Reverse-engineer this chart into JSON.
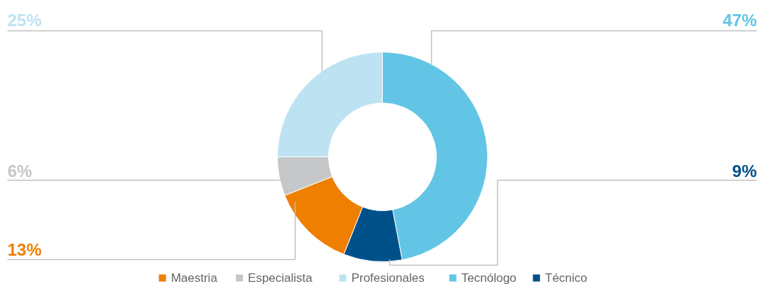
{
  "chart_data": {
    "type": "donut",
    "categories": [
      "Maestria",
      "Especialista",
      "Profesionales",
      "Tecnólogo",
      "Técnico"
    ],
    "values": [
      13,
      6,
      25,
      47,
      9
    ],
    "colors": [
      "#ef7f00",
      "#c6c7c9",
      "#bde3f2",
      "#63c5e6",
      "#00508a"
    ],
    "value_labels": [
      "13%",
      "6%",
      "25%",
      "47%",
      "9%"
    ],
    "legend": "bottom"
  }
}
